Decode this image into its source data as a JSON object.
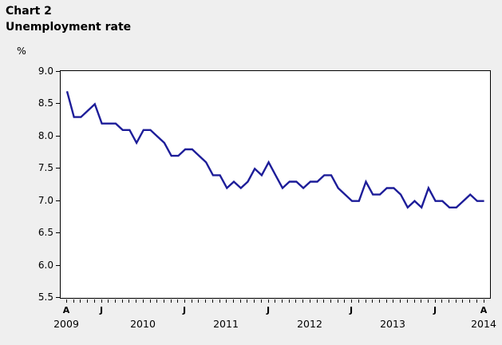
{
  "header": {
    "title": "Chart 2",
    "subtitle": "Unemployment rate",
    "unit_label": "%"
  },
  "colors": {
    "line": "#1d1d99",
    "background": "#efefef",
    "plot_background": "#ffffff",
    "axis": "#000000"
  },
  "chart_data": {
    "type": "line",
    "title": "Chart 2",
    "subtitle": "Unemployment rate",
    "ylabel": "%",
    "ylim": [
      5.5,
      9.0
    ],
    "grid": false,
    "legend": "none",
    "y_tick_labels": [
      "9.0",
      "8.5",
      "8.0",
      "7.5",
      "7.0",
      "6.5",
      "6.0",
      "5.5"
    ],
    "x_month_count": 61,
    "x_range_note": "monthly, first tick A=Aug 2009, J=January ticks, last tick A=Aug 2014",
    "x_letter_labels": [
      {
        "month_index": 0,
        "label": "A"
      },
      {
        "month_index": 5,
        "label": "J"
      },
      {
        "month_index": 17,
        "label": "J"
      },
      {
        "month_index": 29,
        "label": "J"
      },
      {
        "month_index": 41,
        "label": "J"
      },
      {
        "month_index": 53,
        "label": "J"
      },
      {
        "month_index": 60,
        "label": "A"
      }
    ],
    "x_year_labels": [
      {
        "month_index": 0,
        "label": "2009"
      },
      {
        "month_index": 11,
        "label": "2010"
      },
      {
        "month_index": 23,
        "label": "2011"
      },
      {
        "month_index": 35,
        "label": "2012"
      },
      {
        "month_index": 47,
        "label": "2013"
      },
      {
        "month_index": 60,
        "label": "2014"
      }
    ],
    "series": [
      {
        "name": "Unemployment rate (%)",
        "values": [
          8.7,
          8.3,
          8.3,
          8.4,
          8.5,
          8.2,
          8.2,
          8.2,
          8.1,
          8.1,
          7.9,
          8.1,
          8.1,
          8.0,
          7.9,
          7.7,
          7.7,
          7.8,
          7.8,
          7.7,
          7.6,
          7.4,
          7.4,
          7.2,
          7.3,
          7.2,
          7.3,
          7.5,
          7.4,
          7.6,
          7.4,
          7.2,
          7.3,
          7.3,
          7.2,
          7.3,
          7.3,
          7.4,
          7.4,
          7.2,
          7.1,
          7.0,
          7.0,
          7.3,
          7.1,
          7.1,
          7.2,
          7.2,
          7.1,
          6.9,
          7.0,
          6.9,
          7.2,
          7.0,
          7.0,
          6.9,
          6.9,
          7.0,
          7.1,
          7.0,
          7.0
        ]
      }
    ]
  }
}
